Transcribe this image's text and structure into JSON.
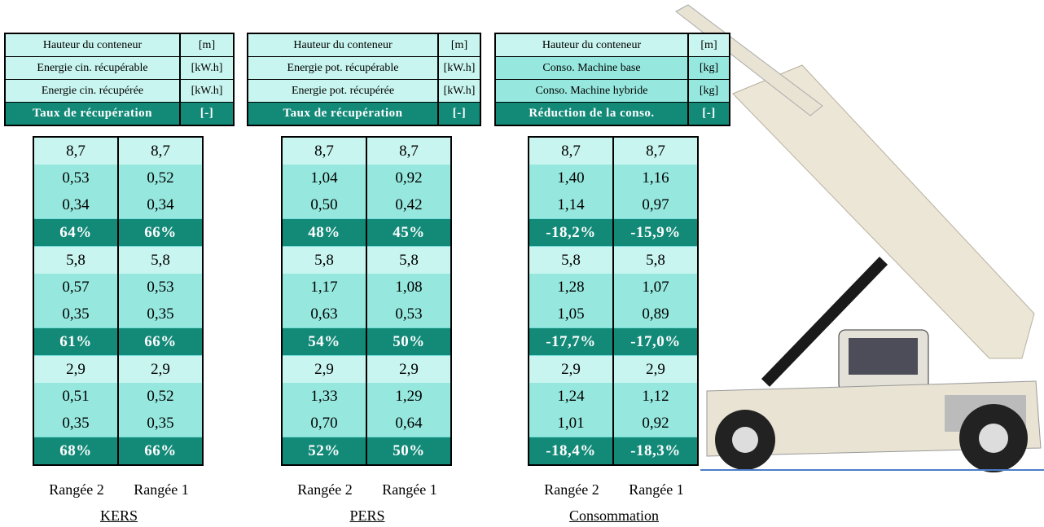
{
  "groups": [
    {
      "legend": [
        [
          "Hauteur du conteneur",
          "[m]"
        ],
        [
          "Energie cin. récupérable",
          "[kW.h]"
        ],
        [
          "Energie cin. récupérée",
          "[kW.h]"
        ],
        [
          "Taux de récupération",
          "[-]"
        ]
      ],
      "rows": [
        [
          "8,7",
          "8,7"
        ],
        [
          "0,53",
          "0,52"
        ],
        [
          "0,34",
          "0,34"
        ],
        [
          "64%",
          "66%"
        ],
        [
          "5,8",
          "5,8"
        ],
        [
          "0,57",
          "0,53"
        ],
        [
          "0,35",
          "0,35"
        ],
        [
          "61%",
          "66%"
        ],
        [
          "2,9",
          "2,9"
        ],
        [
          "0,51",
          "0,52"
        ],
        [
          "0,35",
          "0,35"
        ],
        [
          "68%",
          "66%"
        ]
      ],
      "columns": [
        "Rangée 2",
        "Rangée 1"
      ],
      "caption": "KERS"
    },
    {
      "legend": [
        [
          "Hauteur du conteneur",
          "[m]"
        ],
        [
          "Energie pot. récupérable",
          "[kW.h]"
        ],
        [
          "Energie pot. récupérée",
          "[kW.h]"
        ],
        [
          "Taux de récupération",
          "[-]"
        ]
      ],
      "rows": [
        [
          "8,7",
          "8,7"
        ],
        [
          "1,04",
          "0,92"
        ],
        [
          "0,50",
          "0,42"
        ],
        [
          "48%",
          "45%"
        ],
        [
          "5,8",
          "5,8"
        ],
        [
          "1,17",
          "1,08"
        ],
        [
          "0,63",
          "0,53"
        ],
        [
          "54%",
          "50%"
        ],
        [
          "2,9",
          "2,9"
        ],
        [
          "1,33",
          "1,29"
        ],
        [
          "0,70",
          "0,64"
        ],
        [
          "52%",
          "50%"
        ]
      ],
      "columns": [
        "Rangée 2",
        "Rangée 1"
      ],
      "caption": "PERS"
    },
    {
      "legend": [
        [
          "Hauteur du conteneur",
          "[m]"
        ],
        [
          "Conso. Machine base",
          "[kg]"
        ],
        [
          "Conso. Machine hybride",
          "[kg]"
        ],
        [
          "Réduction de la conso.",
          "[-]"
        ]
      ],
      "rows": [
        [
          "8,7",
          "8,7"
        ],
        [
          "1,40",
          "1,16"
        ],
        [
          "1,14",
          "0,97"
        ],
        [
          "-18,2%",
          "-15,9%"
        ],
        [
          "5,8",
          "5,8"
        ],
        [
          "1,28",
          "1,07"
        ],
        [
          "1,05",
          "0,89"
        ],
        [
          "-17,7%",
          "-17,0%"
        ],
        [
          "2,9",
          "2,9"
        ],
        [
          "1,24",
          "1,12"
        ],
        [
          "1,01",
          "0,92"
        ],
        [
          "-18,4%",
          "-18,3%"
        ]
      ],
      "columns": [
        "Rangée 2",
        "Rangée 1"
      ],
      "caption": "Consommation"
    }
  ]
}
